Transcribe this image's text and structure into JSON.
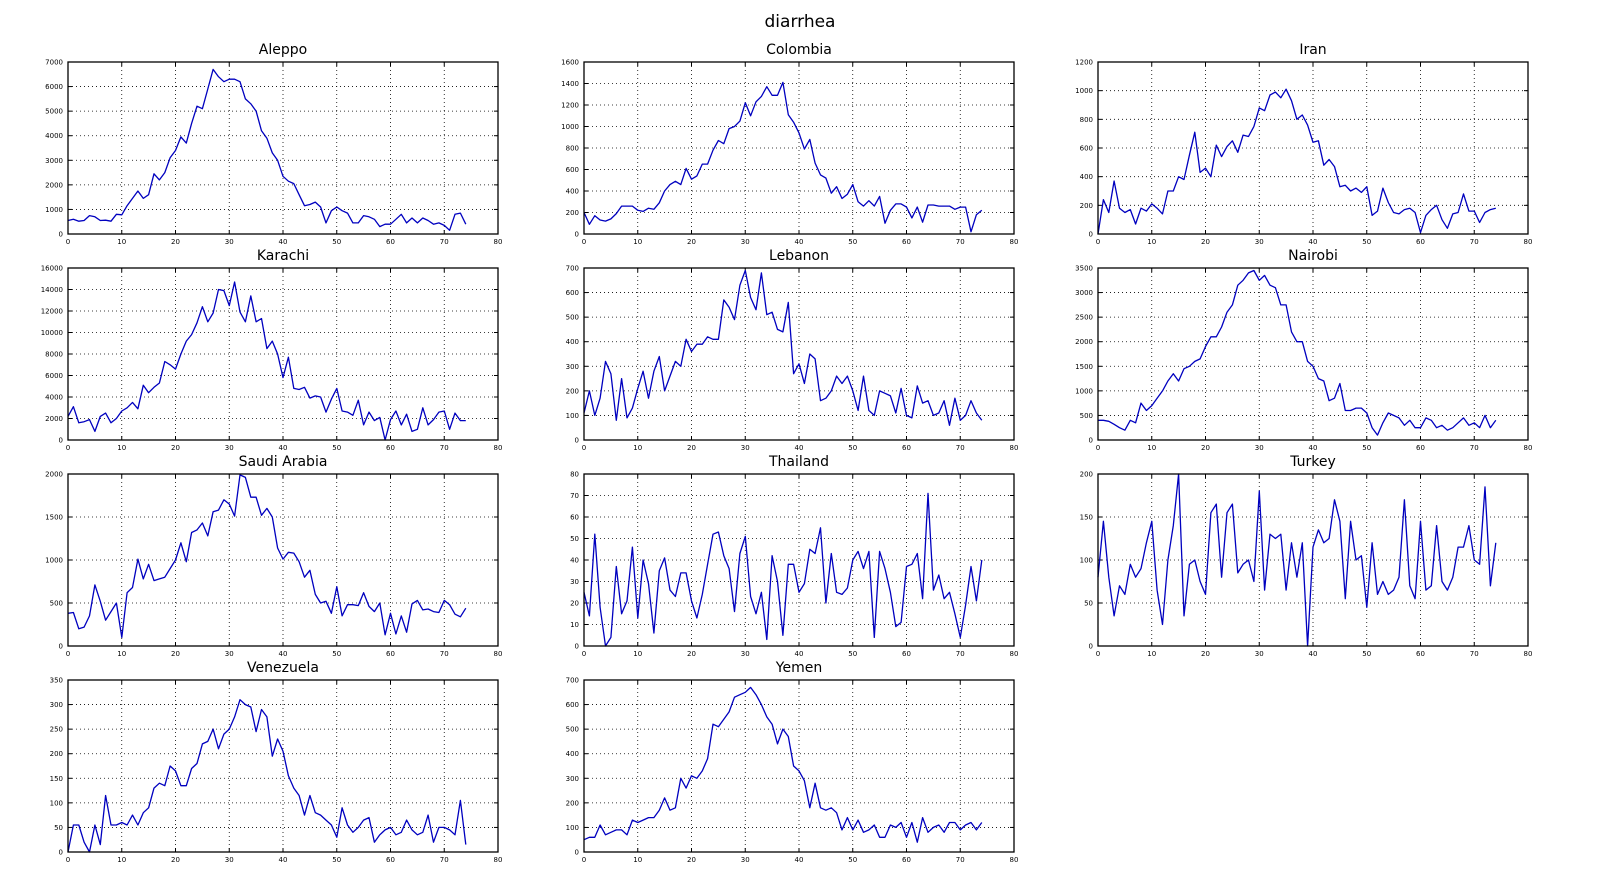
{
  "figure": {
    "title": "diarrhea"
  },
  "style": {
    "line_color": "#0000bf",
    "axis_color": "#000000",
    "grid_color": "#000000"
  },
  "chart_data": [
    {
      "type": "line",
      "title": "Aleppo",
      "xlim": [
        0,
        80
      ],
      "ylim": [
        0,
        7000
      ],
      "xticks": [
        0,
        10,
        20,
        30,
        40,
        50,
        60,
        70,
        80
      ],
      "yticks": [
        0,
        1000,
        2000,
        3000,
        4000,
        5000,
        6000,
        7000
      ],
      "grid": true,
      "series": [
        {
          "values": [
            550,
            600,
            520,
            550,
            750,
            700,
            550,
            560,
            520,
            800,
            780,
            1150,
            1450,
            1750,
            1450,
            1600,
            2450,
            2200,
            2500,
            3100,
            3400,
            3950,
            3700,
            4500,
            5200,
            5100,
            5900,
            6700,
            6400,
            6200,
            6300,
            6300,
            6200,
            5500,
            5300,
            5000,
            4200,
            3900,
            3300,
            3000,
            2350,
            2150,
            2050,
            1600,
            1150,
            1200,
            1300,
            1100,
            450,
            950,
            1100,
            950,
            850,
            450,
            450,
            750,
            700,
            600,
            300,
            400,
            400,
            600,
            800,
            450,
            650,
            450,
            650,
            550,
            400,
            450,
            350,
            150,
            800,
            850,
            400
          ]
        }
      ]
    },
    {
      "type": "line",
      "title": "Colombia",
      "xlim": [
        0,
        80
      ],
      "ylim": [
        0,
        1600
      ],
      "xticks": [
        0,
        10,
        20,
        30,
        40,
        50,
        60,
        70,
        80
      ],
      "yticks": [
        0,
        200,
        400,
        600,
        800,
        1000,
        1200,
        1400,
        1600
      ],
      "grid": true,
      "series": [
        {
          "values": [
            200,
            90,
            170,
            130,
            120,
            140,
            190,
            260,
            260,
            260,
            220,
            210,
            240,
            230,
            290,
            400,
            460,
            490,
            460,
            610,
            510,
            540,
            650,
            650,
            780,
            870,
            840,
            980,
            1000,
            1050,
            1220,
            1100,
            1230,
            1280,
            1370,
            1290,
            1290,
            1410,
            1110,
            1040,
            940,
            790,
            880,
            660,
            550,
            520,
            380,
            440,
            330,
            370,
            460,
            300,
            260,
            310,
            260,
            350,
            100,
            220,
            280,
            280,
            250,
            150,
            250,
            110,
            270,
            270,
            260,
            260,
            260,
            230,
            250,
            250,
            20,
            180,
            220
          ]
        }
      ]
    },
    {
      "type": "line",
      "title": "Iran",
      "xlim": [
        0,
        80
      ],
      "ylim": [
        0,
        1200
      ],
      "xticks": [
        0,
        10,
        20,
        30,
        40,
        50,
        60,
        70,
        80
      ],
      "yticks": [
        0,
        200,
        400,
        600,
        800,
        1000,
        1200
      ],
      "grid": true,
      "series": [
        {
          "values": [
            0,
            240,
            150,
            370,
            180,
            150,
            170,
            70,
            180,
            160,
            210,
            180,
            140,
            300,
            300,
            400,
            380,
            550,
            710,
            430,
            460,
            400,
            620,
            540,
            610,
            650,
            570,
            690,
            680,
            750,
            880,
            860,
            970,
            990,
            950,
            1010,
            930,
            800,
            830,
            760,
            640,
            650,
            480,
            520,
            470,
            330,
            340,
            300,
            320,
            290,
            330,
            130,
            160,
            320,
            220,
            150,
            140,
            170,
            180,
            150,
            10,
            130,
            170,
            200,
            100,
            40,
            140,
            150,
            280,
            160,
            160,
            80,
            150,
            170,
            180
          ]
        }
      ]
    },
    {
      "type": "line",
      "title": "Karachi",
      "xlim": [
        0,
        80
      ],
      "ylim": [
        0,
        16000
      ],
      "xticks": [
        0,
        10,
        20,
        30,
        40,
        50,
        60,
        70,
        80
      ],
      "yticks": [
        0,
        2000,
        4000,
        6000,
        8000,
        10000,
        12000,
        14000,
        16000
      ],
      "grid": true,
      "series": [
        {
          "values": [
            2200,
            3100,
            1600,
            1700,
            1900,
            800,
            2200,
            2500,
            1600,
            2000,
            2700,
            3000,
            3500,
            2900,
            5100,
            4400,
            4900,
            5300,
            7300,
            7000,
            6600,
            8000,
            9200,
            9800,
            10900,
            12400,
            11000,
            11800,
            14000,
            13900,
            12500,
            14700,
            11900,
            11000,
            13400,
            11000,
            11300,
            8500,
            9200,
            8000,
            5800,
            7700,
            4800,
            4700,
            4900,
            3900,
            4100,
            4000,
            2600,
            3800,
            4800,
            2700,
            2600,
            2300,
            3700,
            1400,
            2600,
            1800,
            2100,
            0,
            1900,
            2700,
            1400,
            2400,
            800,
            1000,
            3000,
            1400,
            1900,
            2600,
            2700,
            1000,
            2500,
            1800,
            1800
          ]
        }
      ]
    },
    {
      "type": "line",
      "title": "Lebanon",
      "xlim": [
        0,
        80
      ],
      "ylim": [
        0,
        700
      ],
      "xticks": [
        0,
        10,
        20,
        30,
        40,
        50,
        60,
        70,
        80
      ],
      "yticks": [
        0,
        100,
        200,
        300,
        400,
        500,
        600,
        700
      ],
      "grid": true,
      "series": [
        {
          "values": [
            110,
            200,
            100,
            170,
            320,
            270,
            80,
            250,
            90,
            130,
            210,
            280,
            170,
            280,
            340,
            200,
            260,
            320,
            300,
            410,
            360,
            390,
            390,
            420,
            410,
            410,
            570,
            540,
            490,
            630,
            690,
            580,
            530,
            680,
            510,
            520,
            450,
            440,
            560,
            270,
            310,
            230,
            350,
            330,
            160,
            170,
            200,
            260,
            230,
            260,
            200,
            120,
            260,
            120,
            100,
            200,
            190,
            180,
            110,
            210,
            100,
            90,
            220,
            150,
            160,
            100,
            110,
            160,
            60,
            170,
            80,
            100,
            160,
            110,
            80
          ]
        }
      ]
    },
    {
      "type": "line",
      "title": "Nairobi",
      "xlim": [
        0,
        80
      ],
      "ylim": [
        0,
        3500
      ],
      "xticks": [
        0,
        10,
        20,
        30,
        40,
        50,
        60,
        70,
        80
      ],
      "yticks": [
        0,
        500,
        1000,
        1500,
        2000,
        2500,
        3000,
        3500
      ],
      "grid": true,
      "series": [
        {
          "values": [
            400,
            400,
            380,
            320,
            250,
            200,
            400,
            350,
            750,
            600,
            700,
            850,
            1000,
            1200,
            1350,
            1200,
            1450,
            1500,
            1600,
            1650,
            1900,
            2100,
            2100,
            2300,
            2600,
            2750,
            3150,
            3250,
            3400,
            3450,
            3250,
            3350,
            3150,
            3100,
            2750,
            2750,
            2200,
            2000,
            2000,
            1600,
            1500,
            1250,
            1200,
            800,
            850,
            1150,
            600,
            600,
            650,
            650,
            550,
            250,
            100,
            350,
            550,
            500,
            450,
            300,
            400,
            250,
            250,
            450,
            400,
            250,
            300,
            200,
            250,
            350,
            450,
            300,
            350,
            250,
            500,
            250,
            400
          ]
        }
      ]
    },
    {
      "type": "line",
      "title": "Saudi Arabia",
      "xlim": [
        0,
        80
      ],
      "ylim": [
        0,
        2000
      ],
      "xticks": [
        0,
        10,
        20,
        30,
        40,
        50,
        60,
        70,
        80
      ],
      "yticks": [
        0,
        500,
        1000,
        1500,
        2000
      ],
      "grid": true,
      "series": [
        {
          "values": [
            380,
            390,
            200,
            220,
            350,
            710,
            520,
            300,
            400,
            500,
            100,
            620,
            680,
            1010,
            780,
            950,
            760,
            780,
            800,
            900,
            1000,
            1200,
            980,
            1320,
            1350,
            1430,
            1280,
            1560,
            1580,
            1700,
            1650,
            1510,
            1990,
            1960,
            1730,
            1730,
            1520,
            1600,
            1500,
            1140,
            1010,
            1090,
            1080,
            980,
            800,
            880,
            600,
            500,
            520,
            380,
            690,
            350,
            480,
            480,
            470,
            620,
            460,
            400,
            500,
            130,
            380,
            140,
            350,
            160,
            490,
            530,
            420,
            430,
            400,
            390,
            530,
            480,
            370,
            340,
            440
          ]
        }
      ]
    },
    {
      "type": "line",
      "title": "Thailand",
      "xlim": [
        0,
        80
      ],
      "ylim": [
        0,
        80
      ],
      "xticks": [
        0,
        10,
        20,
        30,
        40,
        50,
        60,
        70,
        80
      ],
      "yticks": [
        0,
        10,
        20,
        30,
        40,
        50,
        60,
        70,
        80
      ],
      "grid": true,
      "series": [
        {
          "values": [
            25,
            14,
            52,
            18,
            0,
            4,
            37,
            15,
            21,
            46,
            13,
            40,
            29,
            6,
            35,
            41,
            26,
            23,
            34,
            34,
            21,
            13,
            24,
            38,
            52,
            53,
            42,
            36,
            16,
            43,
            51,
            23,
            15,
            25,
            3,
            42,
            30,
            5,
            38,
            38,
            25,
            29,
            45,
            43,
            55,
            20,
            43,
            25,
            24,
            27,
            40,
            44,
            36,
            44,
            4,
            44,
            36,
            25,
            9,
            11,
            37,
            38,
            43,
            22,
            71,
            26,
            33,
            22,
            25,
            15,
            4,
            19,
            37,
            21,
            40
          ]
        }
      ]
    },
    {
      "type": "line",
      "title": "Turkey",
      "xlim": [
        0,
        80
      ],
      "ylim": [
        0,
        200
      ],
      "xticks": [
        0,
        10,
        20,
        30,
        40,
        50,
        60,
        70,
        80
      ],
      "yticks": [
        0,
        50,
        100,
        150,
        200
      ],
      "grid": true,
      "series": [
        {
          "values": [
            80,
            145,
            80,
            35,
            70,
            60,
            95,
            80,
            90,
            120,
            145,
            65,
            25,
            100,
            140,
            200,
            35,
            95,
            100,
            75,
            60,
            155,
            165,
            80,
            155,
            165,
            85,
            95,
            100,
            75,
            180,
            65,
            130,
            125,
            130,
            65,
            120,
            80,
            120,
            0,
            115,
            135,
            120,
            125,
            170,
            145,
            55,
            145,
            100,
            105,
            45,
            120,
            60,
            75,
            60,
            65,
            80,
            170,
            70,
            55,
            145,
            65,
            70,
            140,
            75,
            65,
            80,
            115,
            115,
            140,
            100,
            95,
            185,
            70,
            120
          ]
        }
      ]
    },
    {
      "type": "line",
      "title": "Venezuela",
      "xlim": [
        0,
        80
      ],
      "ylim": [
        0,
        350
      ],
      "xticks": [
        0,
        10,
        20,
        30,
        40,
        50,
        60,
        70,
        80
      ],
      "yticks": [
        0,
        50,
        100,
        150,
        200,
        250,
        300,
        350
      ],
      "grid": true,
      "series": [
        {
          "values": [
            0,
            55,
            55,
            20,
            0,
            55,
            15,
            115,
            55,
            55,
            60,
            55,
            75,
            55,
            80,
            90,
            130,
            140,
            135,
            175,
            165,
            135,
            135,
            170,
            180,
            220,
            225,
            250,
            210,
            240,
            250,
            275,
            310,
            300,
            295,
            245,
            290,
            275,
            195,
            230,
            205,
            155,
            130,
            115,
            75,
            115,
            80,
            75,
            65,
            55,
            30,
            90,
            55,
            40,
            50,
            65,
            70,
            20,
            35,
            45,
            50,
            35,
            40,
            65,
            45,
            35,
            40,
            75,
            20,
            50,
            50,
            45,
            35,
            105,
            15
          ]
        }
      ]
    },
    {
      "type": "line",
      "title": "Yemen",
      "xlim": [
        0,
        80
      ],
      "ylim": [
        0,
        700
      ],
      "xticks": [
        0,
        10,
        20,
        30,
        40,
        50,
        60,
        70,
        80
      ],
      "yticks": [
        0,
        100,
        200,
        300,
        400,
        500,
        600,
        700
      ],
      "grid": true,
      "series": [
        {
          "values": [
            50,
            60,
            60,
            110,
            70,
            80,
            90,
            90,
            70,
            130,
            120,
            130,
            140,
            140,
            170,
            220,
            170,
            180,
            300,
            260,
            310,
            300,
            330,
            380,
            520,
            510,
            540,
            570,
            630,
            640,
            650,
            670,
            640,
            600,
            550,
            520,
            440,
            500,
            470,
            350,
            330,
            290,
            180,
            280,
            180,
            170,
            180,
            160,
            90,
            140,
            90,
            130,
            80,
            90,
            110,
            60,
            60,
            110,
            100,
            120,
            60,
            120,
            40,
            140,
            80,
            100,
            110,
            80,
            120,
            120,
            90,
            110,
            120,
            90,
            120
          ]
        }
      ]
    }
  ]
}
